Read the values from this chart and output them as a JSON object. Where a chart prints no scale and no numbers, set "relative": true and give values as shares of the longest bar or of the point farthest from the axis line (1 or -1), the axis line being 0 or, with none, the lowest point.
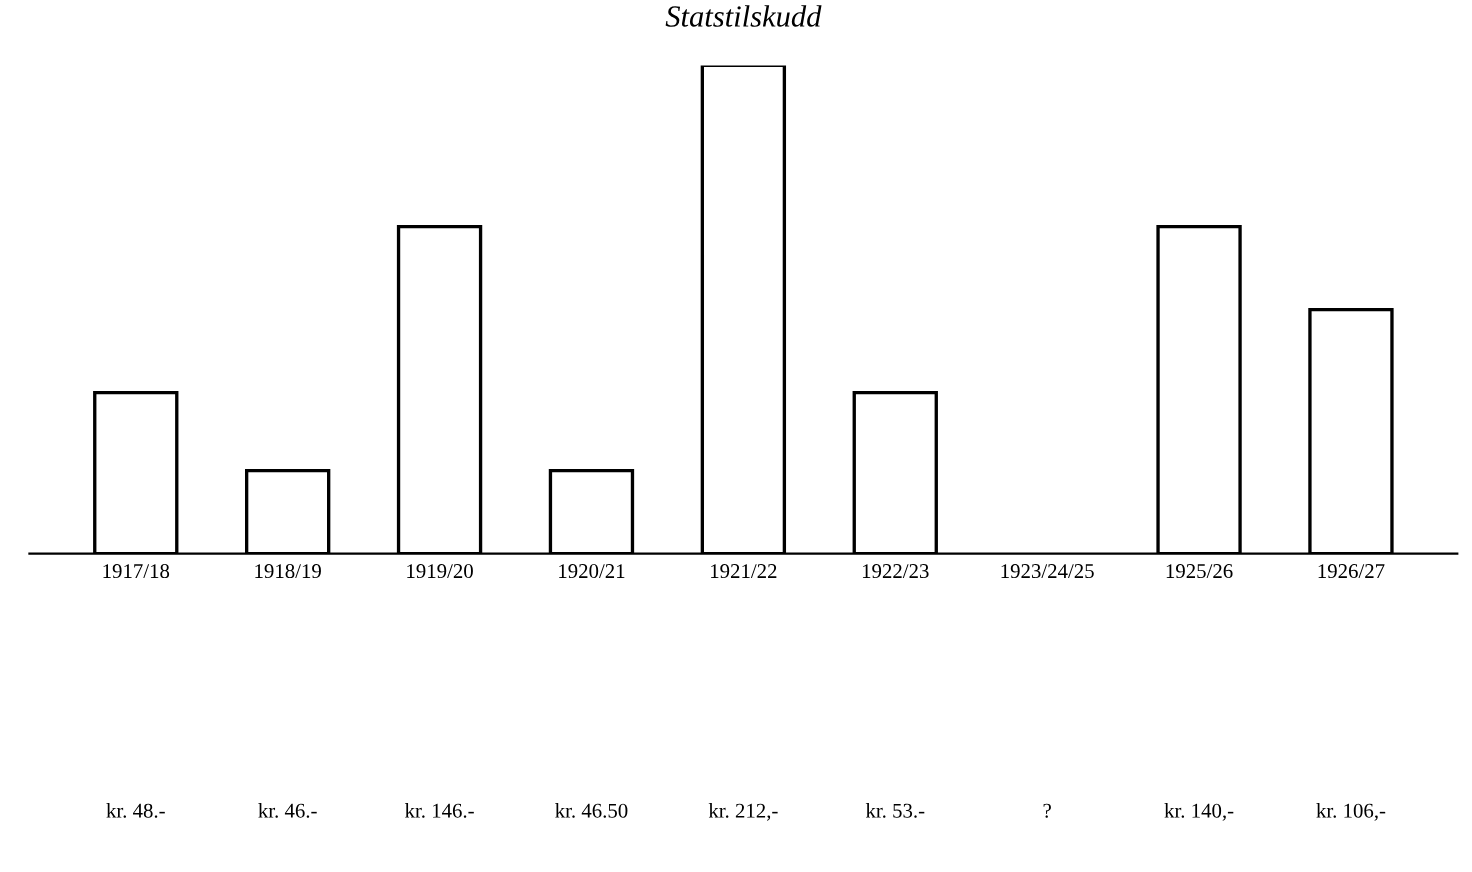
{
  "chart_data": {
    "type": "bar",
    "title": "Statstilskudd",
    "relative": true,
    "categories": [
      "1917/18",
      "1918/19",
      "1919/20",
      "1920/21",
      "1921/22",
      "1922/23",
      "1923/24/25",
      "1925/26",
      "1926/27"
    ],
    "values": [
      0.33,
      0.17,
      0.67,
      0.17,
      1,
      0.33,
      null,
      0.67,
      0.5
    ],
    "annotations": [
      "kr. 48.-",
      "kr. 46.-",
      "kr. 146.-",
      "kr. 46.50",
      "kr. 212,-",
      "kr. 53.-",
      "?",
      "kr. 140,-",
      "kr. 106,-"
    ],
    "color": "#ffffff"
  }
}
